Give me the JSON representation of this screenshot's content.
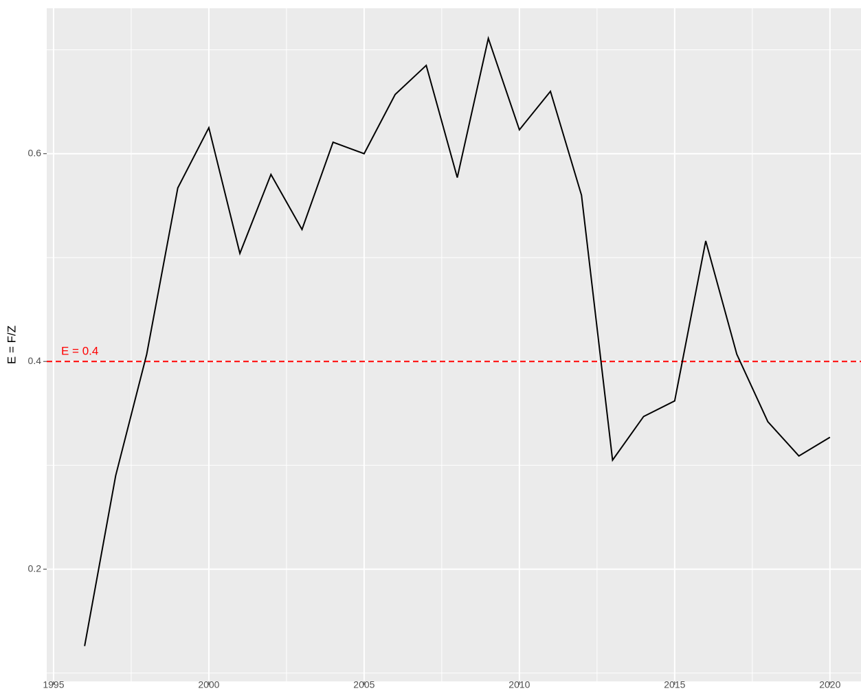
{
  "chart_data": {
    "type": "line",
    "y_label": "E = F/Z",
    "x": [
      1996,
      1997,
      1998,
      1999,
      2000,
      2001,
      2002,
      2003,
      2004,
      2005,
      2006,
      2007,
      2008,
      2009,
      2010,
      2011,
      2012,
      2013,
      2014,
      2015,
      2016,
      2017,
      2018,
      2019,
      2020
    ],
    "series": [
      {
        "color": "#000000",
        "values": [
          0.126,
          0.29,
          0.407,
          0.567,
          0.625,
          0.504,
          0.58,
          0.527,
          0.611,
          0.6,
          0.657,
          0.685,
          0.577,
          0.711,
          0.623,
          0.66,
          0.56,
          0.305,
          0.347,
          0.362,
          0.516,
          0.407,
          0.342,
          0.309,
          0.327
        ]
      }
    ],
    "xlim": [
      1994.78,
      2021.0
    ],
    "ylim": [
      0.092,
      0.74
    ],
    "xticks": [
      1995,
      2000,
      2005,
      2010,
      2015,
      2020
    ],
    "yticks": [
      0.2,
      0.4,
      0.6
    ],
    "grid": true,
    "reference_line": {
      "value": 0.4,
      "color": "#ff0000",
      "label": "E = 0.4"
    }
  }
}
